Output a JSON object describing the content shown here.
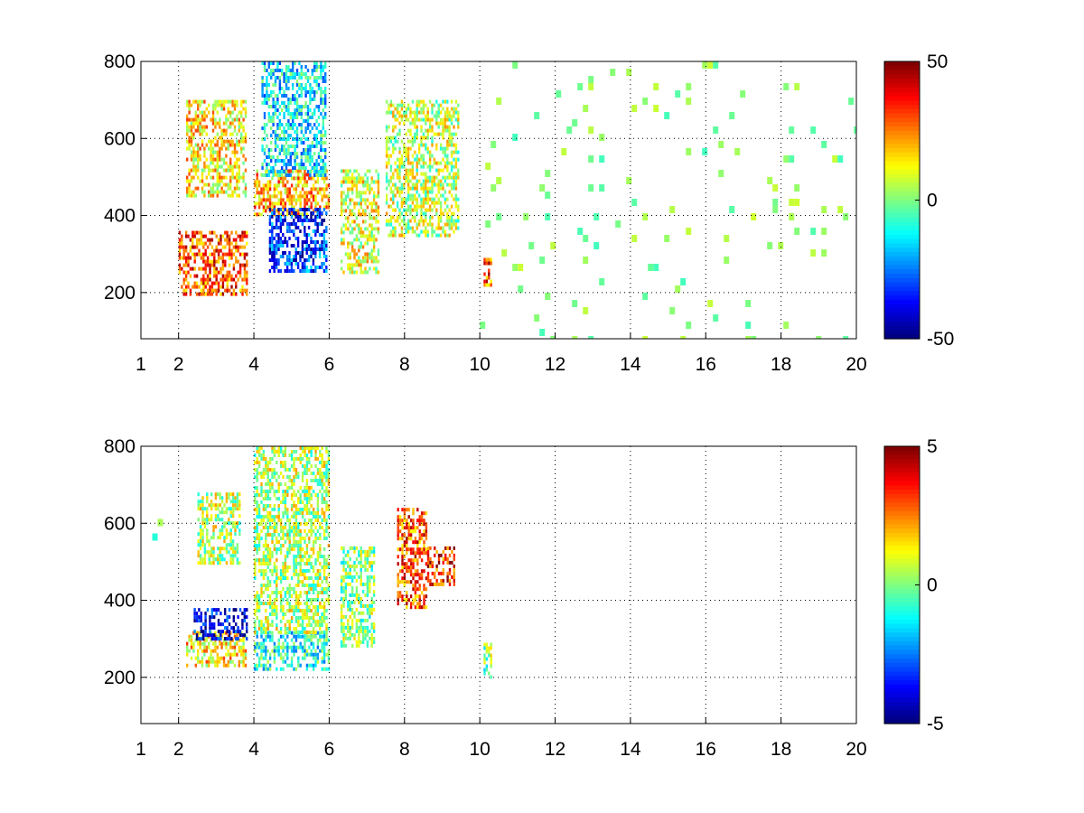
{
  "chart_data": [
    {
      "type": "heatmap",
      "title": "",
      "xlabel": "",
      "ylabel": "",
      "xlim": [
        1,
        20
      ],
      "ylim": [
        80,
        800
      ],
      "xticks": [
        1,
        2,
        4,
        6,
        8,
        10,
        12,
        14,
        16,
        18,
        20
      ],
      "yticks": [
        200,
        400,
        600,
        800
      ],
      "grid": true,
      "grid_style": "dotted",
      "colormap": "jet",
      "colorbar": {
        "clim": [
          -50,
          50
        ],
        "ticks": [
          -50,
          0,
          50
        ]
      },
      "intensity_regions": [
        {
          "x": [
            2.0,
            3.8
          ],
          "y": [
            200,
            360
          ],
          "value": 30
        },
        {
          "x": [
            2.2,
            3.8
          ],
          "y": [
            450,
            700
          ],
          "value": 14
        },
        {
          "x": [
            4.0,
            6.0
          ],
          "y": [
            400,
            520
          ],
          "value": 20
        },
        {
          "x": [
            4.4,
            5.9
          ],
          "y": [
            260,
            420
          ],
          "value": -32
        },
        {
          "x": [
            4.2,
            5.9
          ],
          "y": [
            500,
            800
          ],
          "value": -14
        },
        {
          "x": [
            6.3,
            7.3
          ],
          "y": [
            250,
            520
          ],
          "value": 10
        },
        {
          "x": [
            7.5,
            9.4
          ],
          "y": [
            350,
            700
          ],
          "value": 6
        },
        {
          "x": [
            10.1,
            10.3
          ],
          "y": [
            220,
            290
          ],
          "value": 30
        }
      ],
      "sparse_band": {
        "x": [
          10,
          20
        ],
        "y": [
          80,
          800
        ],
        "value_range": [
          -6,
          8
        ]
      }
    },
    {
      "type": "heatmap",
      "title": "",
      "xlabel": "",
      "ylabel": "",
      "xlim": [
        1,
        20
      ],
      "ylim": [
        80,
        800
      ],
      "xticks": [
        1,
        2,
        4,
        6,
        8,
        10,
        12,
        14,
        16,
        18,
        20
      ],
      "yticks": [
        200,
        400,
        600,
        800
      ],
      "grid": true,
      "grid_style": "dotted",
      "colormap": "jet",
      "colorbar": {
        "clim": [
          -5,
          5
        ],
        "ticks": [
          -5,
          0,
          5
        ]
      },
      "intensity_regions": [
        {
          "x": [
            2.2,
            3.8
          ],
          "y": [
            230,
            320
          ],
          "value": 1.5
        },
        {
          "x": [
            2.4,
            3.8
          ],
          "y": [
            300,
            380
          ],
          "value": -4
        },
        {
          "x": [
            2.5,
            3.6
          ],
          "y": [
            500,
            680
          ],
          "value": 0.5
        },
        {
          "x": [
            4.0,
            6.0
          ],
          "y": [
            220,
            320
          ],
          "value": -1
        },
        {
          "x": [
            4.0,
            6.0
          ],
          "y": [
            320,
            800
          ],
          "value": 0.5
        },
        {
          "x": [
            6.3,
            7.2
          ],
          "y": [
            280,
            540
          ],
          "value": 0
        },
        {
          "x": [
            7.8,
            8.6
          ],
          "y": [
            380,
            640
          ],
          "value": 3
        },
        {
          "x": [
            8.6,
            9.3
          ],
          "y": [
            440,
            540
          ],
          "value": 3.5
        },
        {
          "x": [
            10.1,
            10.3
          ],
          "y": [
            200,
            290
          ],
          "value": 0
        }
      ],
      "sparse_band": {
        "x": [
          1.3,
          1.8
        ],
        "y": [
          540,
          780
        ],
        "value_range": [
          -5,
          5
        ]
      }
    }
  ]
}
